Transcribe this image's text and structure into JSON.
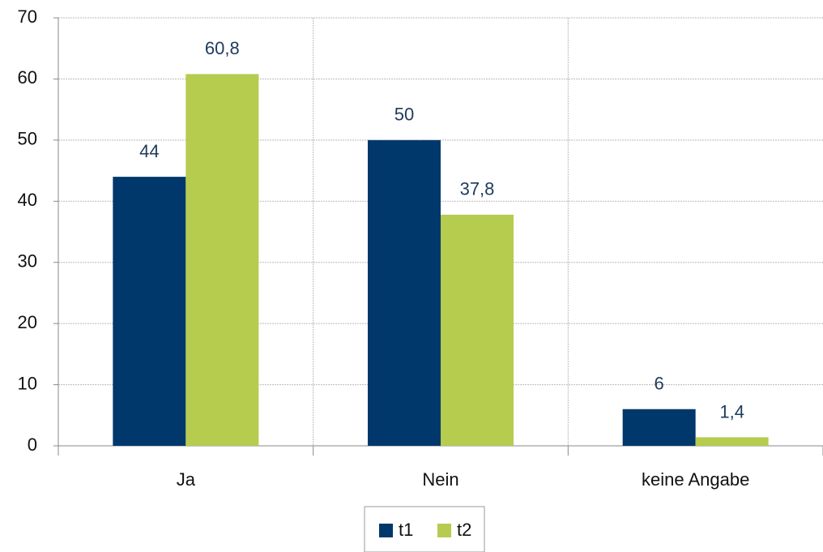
{
  "chart_data": {
    "type": "bar",
    "categories": [
      "Ja",
      "Nein",
      "keine Angabe"
    ],
    "series": [
      {
        "name": "t1",
        "color": "#00386b",
        "values": [
          44,
          50,
          6
        ]
      },
      {
        "name": "t2",
        "color": "#b5cc4f",
        "values": [
          60.8,
          37.8,
          1.4
        ],
        "value_labels": [
          "60,8",
          "37,8",
          "1,4"
        ]
      }
    ],
    "ylim": [
      0,
      70
    ],
    "yticks": [
      0,
      10,
      20,
      30,
      40,
      50,
      60,
      70
    ],
    "grid": true,
    "legend": "bottom"
  }
}
